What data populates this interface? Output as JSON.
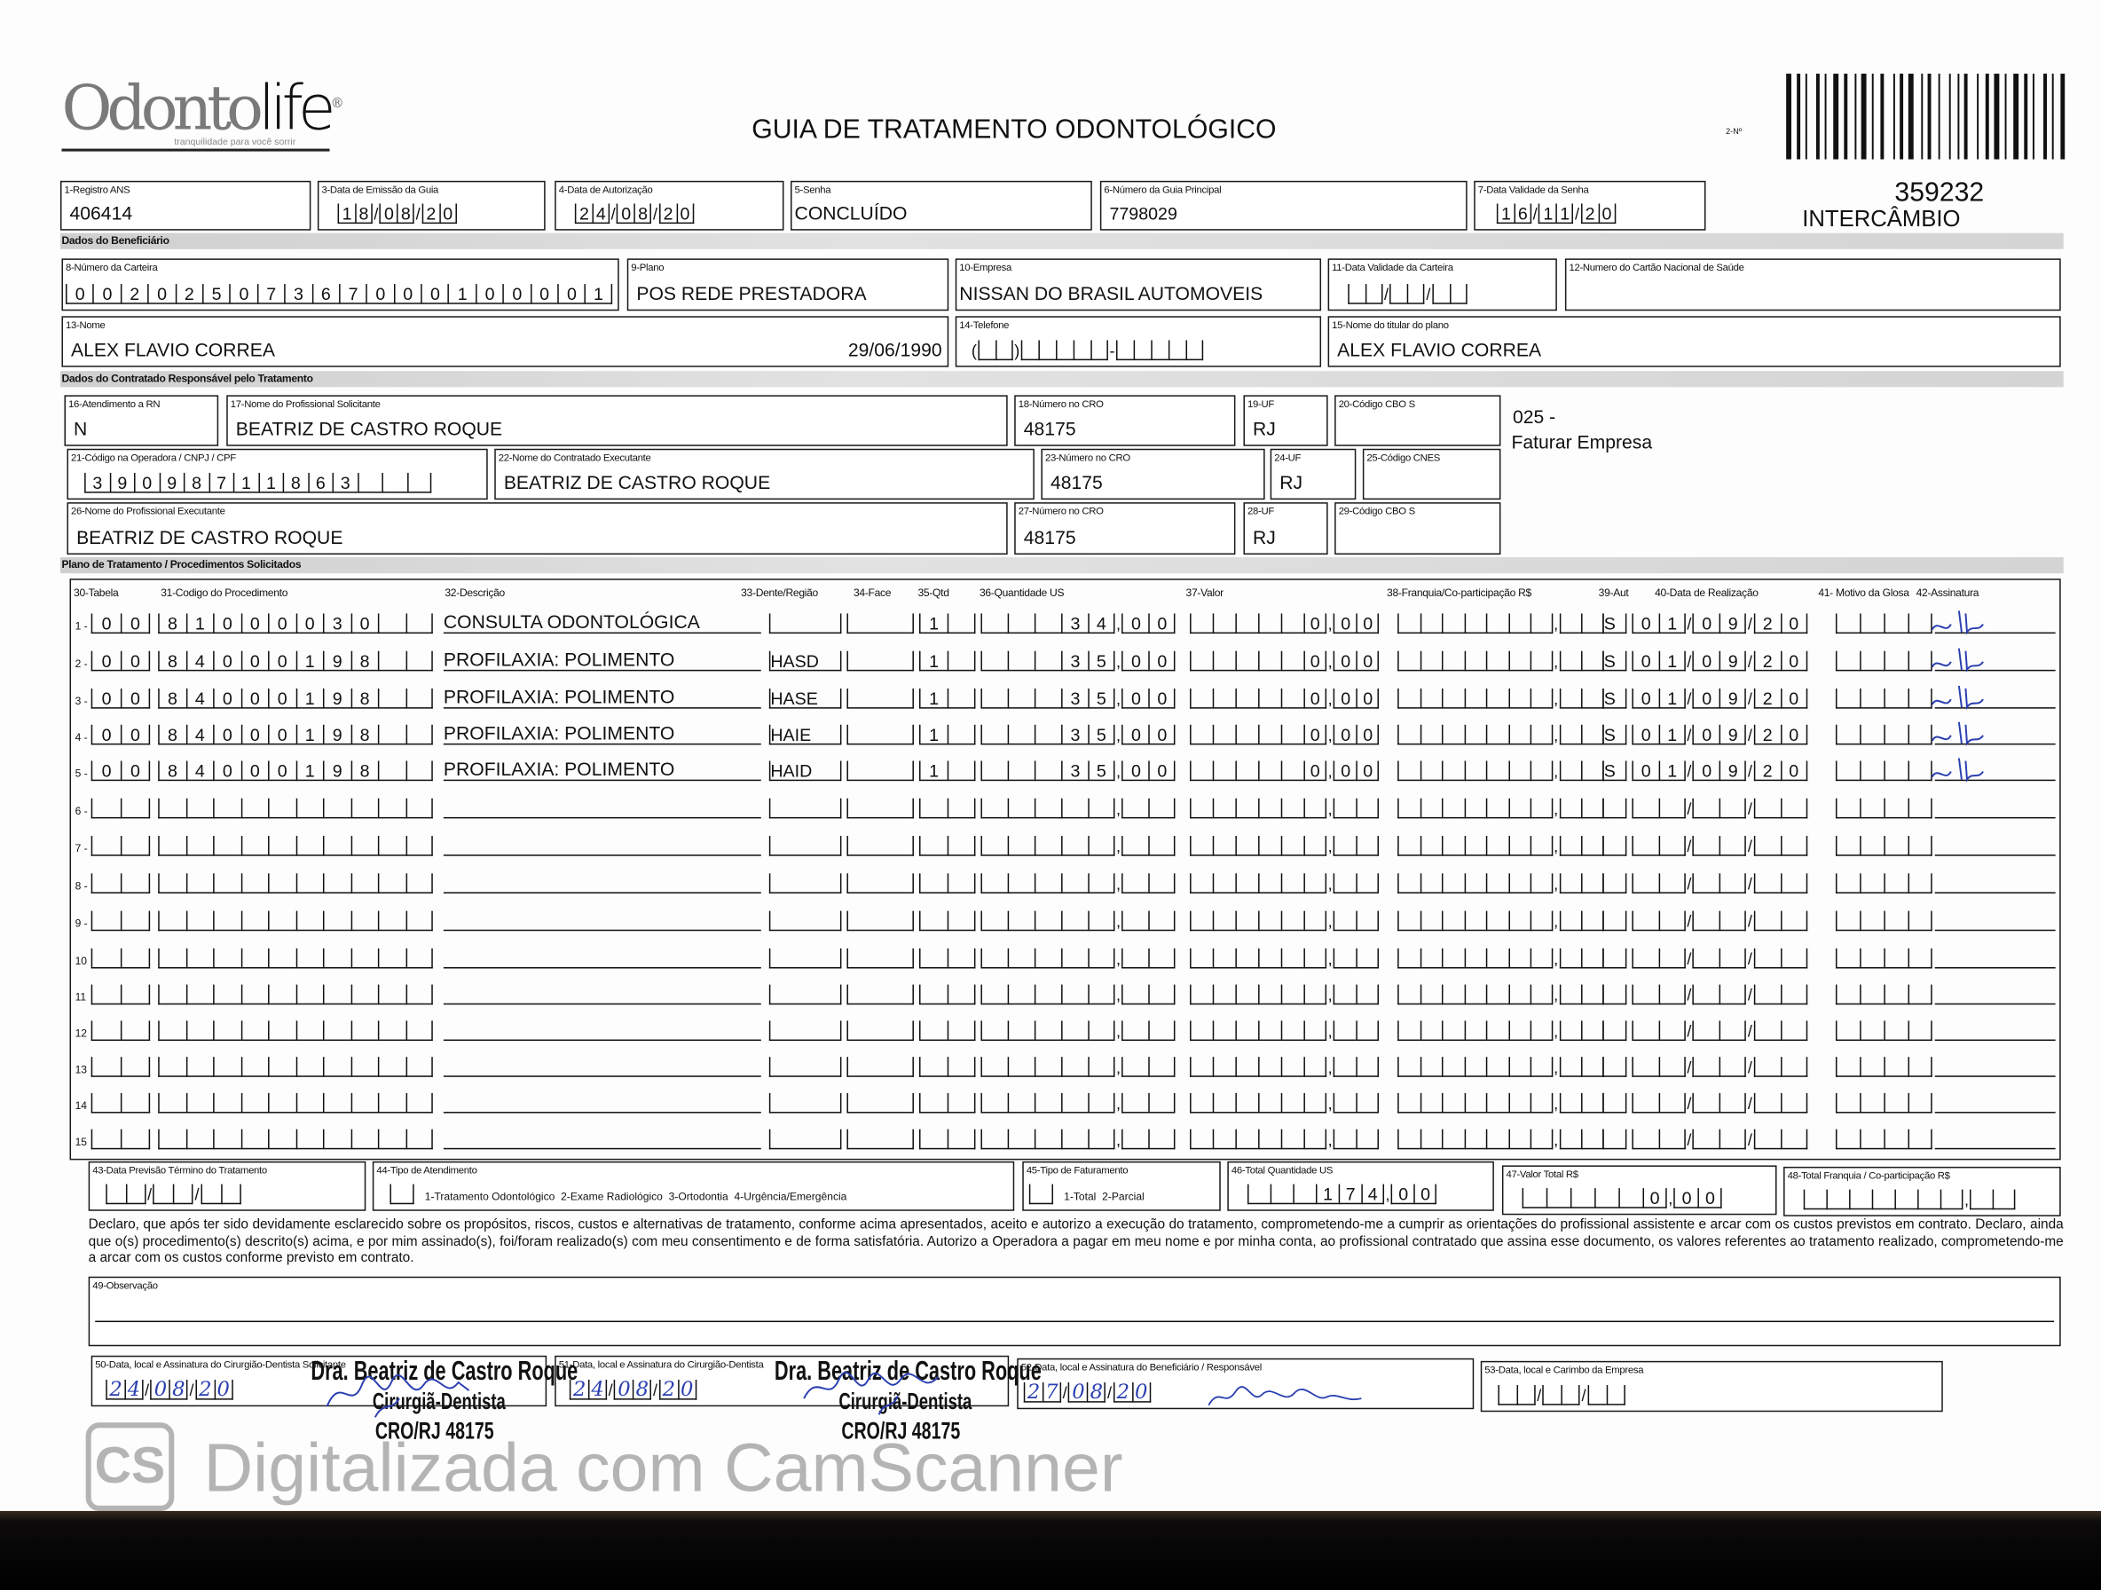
{
  "header": {
    "logo": "Odontolife",
    "logo_tagline": "tranquilidade para você sorrir",
    "title": "GUIA DE TRATAMENTO ODONTOLÓGICO",
    "field2_label": "2-Nº",
    "guide_number": "359232",
    "guide_type": "INTERCÂMBIO"
  },
  "guide": {
    "f1": {
      "label": "1-Registro ANS",
      "value": "406414"
    },
    "f3": {
      "label": "3-Data de Emissão da Guia",
      "value": "18/08/20"
    },
    "f4": {
      "label": "4-Data de Autorização",
      "value": "24/08/20"
    },
    "f5": {
      "label": "5-Senha",
      "value": "CONCLUÍDO"
    },
    "f6": {
      "label": "6-Número da Guia Principal",
      "value": "7798029"
    },
    "f7": {
      "label": "7-Data Validade da Senha",
      "value": "16/11/20"
    }
  },
  "beneficiary": {
    "section": "Dados do Beneficiário",
    "f8": {
      "label": "8-Número da Carteira",
      "value": "00202507367000100001"
    },
    "f9": {
      "label": "9-Plano",
      "value": "POS REDE PRESTADORA"
    },
    "f10": {
      "label": "10-Empresa",
      "value": "NISSAN DO BRASIL AUTOMOVEIS"
    },
    "f11": {
      "label": "11-Data Validade da Carteira",
      "value": ""
    },
    "f12": {
      "label": "12-Numero do Cartão Nacional de Saúde",
      "value": ""
    },
    "f13": {
      "label": "13-Nome",
      "value": "ALEX FLAVIO CORREA",
      "birthdate": "29/06/1990"
    },
    "f14": {
      "label": "14-Telefone",
      "value": ""
    },
    "f15": {
      "label": "15-Nome do titular do plano",
      "value": "ALEX FLAVIO CORREA"
    }
  },
  "contractor": {
    "section": "Dados do Contratado Responsável pelo Tratamento",
    "f16": {
      "label": "16-Atendimento a RN",
      "value": "N"
    },
    "f17": {
      "label": "17-Nome do Profissional Solicitante",
      "value": "BEATRIZ DE CASTRO ROQUE"
    },
    "f18": {
      "label": "18-Número no CRO",
      "value": "48175"
    },
    "f19": {
      "label": "19-UF",
      "value": "RJ"
    },
    "f20": {
      "label": "20-Código CBO S",
      "value": ""
    },
    "note_code": "025 -",
    "note_text": "Faturar Empresa",
    "f21": {
      "label": "21-Código na Operadora / CNPJ / CPF",
      "value": "39098711863"
    },
    "f22": {
      "label": "22-Nome do Contratado Executante",
      "value": "BEATRIZ DE CASTRO ROQUE"
    },
    "f23": {
      "label": "23-Número no CRO",
      "value": "48175"
    },
    "f24": {
      "label": "24-UF",
      "value": "RJ"
    },
    "f25": {
      "label": "25-Código CNES",
      "value": ""
    },
    "f26": {
      "label": "26-Nome do Profissional Executante",
      "value": "BEATRIZ DE CASTRO ROQUE"
    },
    "f27": {
      "label": "27-Número no CRO",
      "value": "48175"
    },
    "f28": {
      "label": "28-UF",
      "value": "RJ"
    },
    "f29": {
      "label": "29-Código CBO S",
      "value": ""
    }
  },
  "plan": {
    "section": "Plano de Tratamento / Procedimentos Solicitados",
    "columns": [
      "30-Tabela",
      "31-Codigo do Procedimento",
      "32-Descrição",
      "33-Dente/Região",
      "34-Face",
      "35-Qtd",
      "36-Quantidade US",
      "37-Valor",
      "38-Franquia/Co-participação R$",
      "39-Aut",
      "40-Data de Realização",
      "41- Motivo da Glosa",
      "42-Assinatura"
    ],
    "rows": [
      {
        "num": "1 -",
        "tabela": "00",
        "codigo": "81000030",
        "descricao": "CONSULTA ODONTOLÓGICA",
        "dente": "",
        "face": "",
        "qtd": "1",
        "us": "34,00",
        "valor": "0,00",
        "franquia": "",
        "aut": "S",
        "data": "01/09/20",
        "glosa": "",
        "signed": true
      },
      {
        "num": "2 -",
        "tabela": "00",
        "codigo": "84000198",
        "descricao": "PROFILAXIA: POLIMENTO",
        "dente": "HASD",
        "face": "",
        "qtd": "1",
        "us": "35,00",
        "valor": "0,00",
        "franquia": "",
        "aut": "S",
        "data": "01/09/20",
        "glosa": "",
        "signed": true
      },
      {
        "num": "3 -",
        "tabela": "00",
        "codigo": "84000198",
        "descricao": "PROFILAXIA: POLIMENTO",
        "dente": "HASE",
        "face": "",
        "qtd": "1",
        "us": "35,00",
        "valor": "0,00",
        "franquia": "",
        "aut": "S",
        "data": "01/09/20",
        "glosa": "",
        "signed": true
      },
      {
        "num": "4 -",
        "tabela": "00",
        "codigo": "84000198",
        "descricao": "PROFILAXIA: POLIMENTO",
        "dente": "HAIE",
        "face": "",
        "qtd": "1",
        "us": "35,00",
        "valor": "0,00",
        "franquia": "",
        "aut": "S",
        "data": "01/09/20",
        "glosa": "",
        "signed": true
      },
      {
        "num": "5 -",
        "tabela": "00",
        "codigo": "84000198",
        "descricao": "PROFILAXIA: POLIMENTO",
        "dente": "HAID",
        "face": "",
        "qtd": "1",
        "us": "35,00",
        "valor": "0,00",
        "franquia": "",
        "aut": "S",
        "data": "01/09/20",
        "glosa": "",
        "signed": true
      },
      {
        "num": "6 -",
        "tabela": "",
        "codigo": "",
        "descricao": "",
        "dente": "",
        "face": "",
        "qtd": "",
        "us": "",
        "valor": "",
        "franquia": "",
        "aut": "",
        "data": "",
        "glosa": "",
        "signed": false
      },
      {
        "num": "7 -",
        "tabela": "",
        "codigo": "",
        "descricao": "",
        "dente": "",
        "face": "",
        "qtd": "",
        "us": "",
        "valor": "",
        "franquia": "",
        "aut": "",
        "data": "",
        "glosa": "",
        "signed": false
      },
      {
        "num": "8 -",
        "tabela": "",
        "codigo": "",
        "descricao": "",
        "dente": "",
        "face": "",
        "qtd": "",
        "us": "",
        "valor": "",
        "franquia": "",
        "aut": "",
        "data": "",
        "glosa": "",
        "signed": false
      },
      {
        "num": "9 -",
        "tabela": "",
        "codigo": "",
        "descricao": "",
        "dente": "",
        "face": "",
        "qtd": "",
        "us": "",
        "valor": "",
        "franquia": "",
        "aut": "",
        "data": "",
        "glosa": "",
        "signed": false
      },
      {
        "num": "10",
        "tabela": "",
        "codigo": "",
        "descricao": "",
        "dente": "",
        "face": "",
        "qtd": "",
        "us": "",
        "valor": "",
        "franquia": "",
        "aut": "",
        "data": "",
        "glosa": "",
        "signed": false
      },
      {
        "num": "11",
        "tabela": "",
        "codigo": "",
        "descricao": "",
        "dente": "",
        "face": "",
        "qtd": "",
        "us": "",
        "valor": "",
        "franquia": "",
        "aut": "",
        "data": "",
        "glosa": "",
        "signed": false
      },
      {
        "num": "12",
        "tabela": "",
        "codigo": "",
        "descricao": "",
        "dente": "",
        "face": "",
        "qtd": "",
        "us": "",
        "valor": "",
        "franquia": "",
        "aut": "",
        "data": "",
        "glosa": "",
        "signed": false
      },
      {
        "num": "13",
        "tabela": "",
        "codigo": "",
        "descricao": "",
        "dente": "",
        "face": "",
        "qtd": "",
        "us": "",
        "valor": "",
        "franquia": "",
        "aut": "",
        "data": "",
        "glosa": "",
        "signed": false
      },
      {
        "num": "14",
        "tabela": "",
        "codigo": "",
        "descricao": "",
        "dente": "",
        "face": "",
        "qtd": "",
        "us": "",
        "valor": "",
        "franquia": "",
        "aut": "",
        "data": "",
        "glosa": "",
        "signed": false
      },
      {
        "num": "15",
        "tabela": "",
        "codigo": "",
        "descricao": "",
        "dente": "",
        "face": "",
        "qtd": "",
        "us": "",
        "valor": "",
        "franquia": "",
        "aut": "",
        "data": "",
        "glosa": "",
        "signed": false
      }
    ]
  },
  "totals": {
    "f43": {
      "label": "43-Data Previsão Término do Tratamento",
      "value": ""
    },
    "f44": {
      "label": "44-Tipo de Atendimento",
      "value": "",
      "options": "1-Tratamento Odontológico  2-Exame Radiológico  3-Ortodontia  4-Urgência/Emergência"
    },
    "f45": {
      "label": "45-Tipo de Faturamento",
      "value": "",
      "options": "1-Total  2-Parcial"
    },
    "f46": {
      "label": "46-Total Quantidade US",
      "value": "174,00"
    },
    "f47": {
      "label": "47-Valor Total R$",
      "value": "0,00"
    },
    "f48": {
      "label": "48-Total Franquia / Co-participação R$",
      "value": ""
    }
  },
  "declaration": "Declaro, que após ter sido devidamente esclarecido sobre os propósitos, riscos, custos e alternativas de tratamento, conforme acima apresentados, aceito e autorizo a execução do tratamento, comprometendo-me a cumprir as orientações do profissional assistente e arcar com os custos previstos em contrato. Declaro, ainda que o(s) procedimento(s) descrito(s) acima, e por mim assinado(s), foi/foram realizado(s) com meu consentimento e de forma satisfatória. Autorizo a Operadora a pagar em meu nome e por minha conta, ao profissional contratado que assina esse documento, os valores referentes ao tratamento realizado, comprometendo-me a arcar com os custos conforme previsto em contrato.",
  "observation": {
    "label": "49-Observação",
    "value": ""
  },
  "signatures": {
    "f50": {
      "label": "50-Data, local e Assinatura do Cirurgião-Dentista Solicitante",
      "date": "24/08/20"
    },
    "f51": {
      "label": "51-Data, local e Assinatura do Cirurgião-Dentista",
      "date": "24/08/20"
    },
    "f52": {
      "label": "52-Data, local e Assinatura do Beneficiário / Responsável",
      "date": "27/08/20"
    },
    "f53": {
      "label": "53-Data, local e Carimbo da Empresa",
      "date": ""
    },
    "stamp": {
      "name": "Dra. Beatriz de Castro Roque",
      "title": "Cirurgiã-Dentista",
      "cro": "CRO/RJ 48175"
    }
  },
  "watermark": {
    "badge": "CS",
    "text": "Digitalizada com CamScanner"
  },
  "colors": {
    "ink_blue": "#2a3fb0",
    "band_gray": "#d4d4d4",
    "watermark_gray": "#b4b4b4"
  }
}
